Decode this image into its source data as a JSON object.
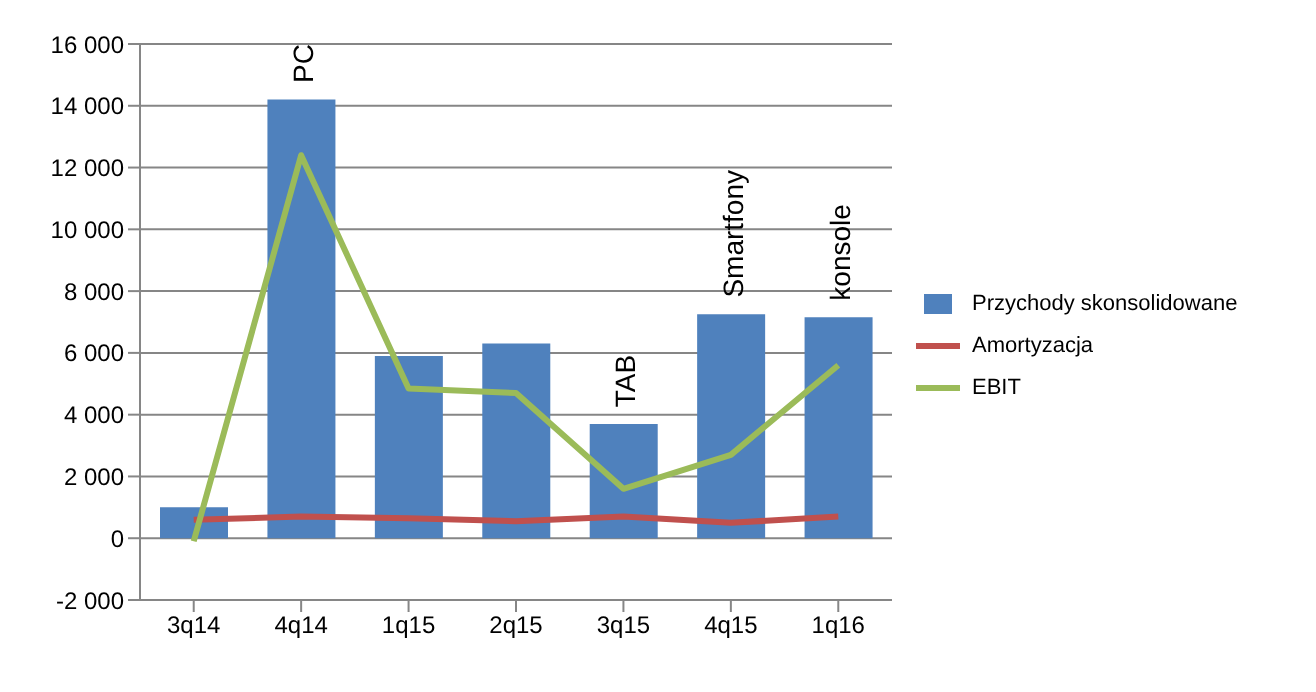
{
  "chart_data": {
    "type": "bar",
    "categories": [
      "3q14",
      "4q14",
      "1q15",
      "2q15",
      "3q15",
      "4q15",
      "1q16"
    ],
    "series": [
      {
        "name": "Przychody skonsolidowane",
        "color": "#4f81bd",
        "values": [
          1000,
          14200,
          5900,
          6300,
          3700,
          7250,
          7150
        ]
      },
      {
        "name": "Amortyzacja",
        "type": "line",
        "color": "#c0504d",
        "values": [
          600,
          700,
          650,
          550,
          700,
          500,
          700
        ]
      },
      {
        "name": "EBIT",
        "type": "line",
        "color": "#9bbb59",
        "values": [
          -100,
          12400,
          4850,
          4700,
          1600,
          2700,
          5600
        ]
      }
    ],
    "ylim": [
      -2000,
      16000
    ],
    "yticks": [
      {
        "value": -2000,
        "label": "-2 000"
      },
      0,
      {
        "value": 2000,
        "label": "2 000"
      },
      {
        "value": 4000,
        "label": "4 000"
      },
      {
        "value": 6000,
        "label": "6 000"
      },
      {
        "value": 8000,
        "label": "8 000"
      },
      {
        "value": 10000,
        "label": "10 000"
      },
      {
        "value": 12000,
        "label": "12 000"
      },
      {
        "value": 14000,
        "label": "14 000"
      },
      {
        "value": 16000,
        "label": "16 000"
      }
    ],
    "grid": "y",
    "legend": "right",
    "marker": "none",
    "annotations": [
      "PC",
      "TAB",
      "Smartfony",
      "konsole"
    ]
  }
}
